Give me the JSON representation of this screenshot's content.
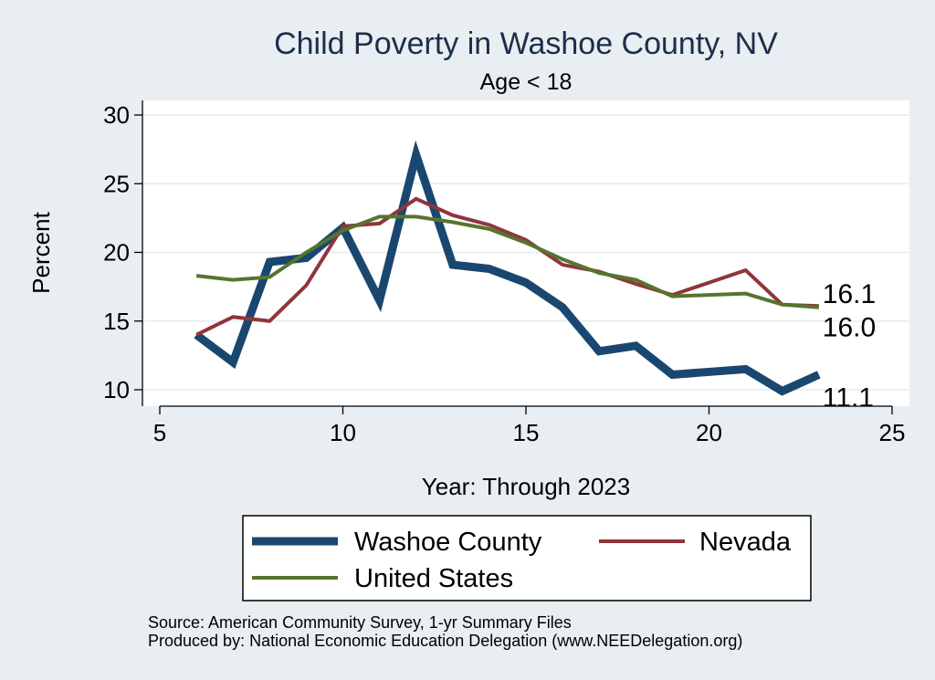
{
  "chart_data": {
    "type": "line",
    "title": "Child Poverty in Washoe County, NV",
    "subtitle": "Age < 18",
    "xlabel": "Year: Through 2023",
    "ylabel": "Percent",
    "xlim": [
      5,
      25
    ],
    "ylim": [
      9,
      31
    ],
    "xticks": [
      5,
      10,
      15,
      20,
      25
    ],
    "yticks": [
      10,
      15,
      20,
      25,
      30
    ],
    "grid": true,
    "legend_position": "bottom",
    "series": [
      {
        "name": "Washoe County",
        "color": "#1a476f",
        "stroke": "thick",
        "x": [
          6,
          7,
          8,
          9,
          10,
          11,
          12,
          13,
          14,
          15,
          16,
          17,
          18,
          19,
          20,
          21,
          22,
          23
        ],
        "y": [
          14.0,
          12.0,
          19.3,
          19.6,
          21.8,
          16.5,
          27.1,
          19.1,
          18.8,
          17.8,
          16.0,
          12.8,
          13.2,
          11.1,
          11.3,
          11.5,
          9.9,
          11.1
        ],
        "end_label": "11.1"
      },
      {
        "name": "Nevada",
        "color": "#90353b",
        "stroke": "thin",
        "x": [
          6,
          7,
          8,
          9,
          10,
          11,
          12,
          13,
          14,
          15,
          16,
          17,
          18,
          19,
          20,
          21,
          22,
          23
        ],
        "y": [
          14.0,
          15.3,
          15.0,
          17.6,
          21.9,
          22.1,
          23.9,
          22.7,
          22.0,
          20.9,
          19.1,
          18.6,
          17.7,
          16.9,
          17.8,
          18.7,
          16.2,
          16.1
        ],
        "end_label": "16.1"
      },
      {
        "name": "United States",
        "color": "#55752f",
        "stroke": "thin",
        "x": [
          6,
          7,
          8,
          9,
          10,
          11,
          12,
          13,
          14,
          15,
          16,
          17,
          18,
          19,
          20,
          21,
          22,
          23
        ],
        "y": [
          18.3,
          18.0,
          18.2,
          20.0,
          21.6,
          22.6,
          22.6,
          22.2,
          21.7,
          20.7,
          19.5,
          18.5,
          18.0,
          16.8,
          16.9,
          17.0,
          16.2,
          16.0
        ],
        "end_label": "16.0"
      }
    ]
  },
  "notes": {
    "source": "Source: American Community Survey, 1-yr Summary Files",
    "producer": "Produced by: National Economic Education Delegation (www.NEEDelegation.org)"
  }
}
